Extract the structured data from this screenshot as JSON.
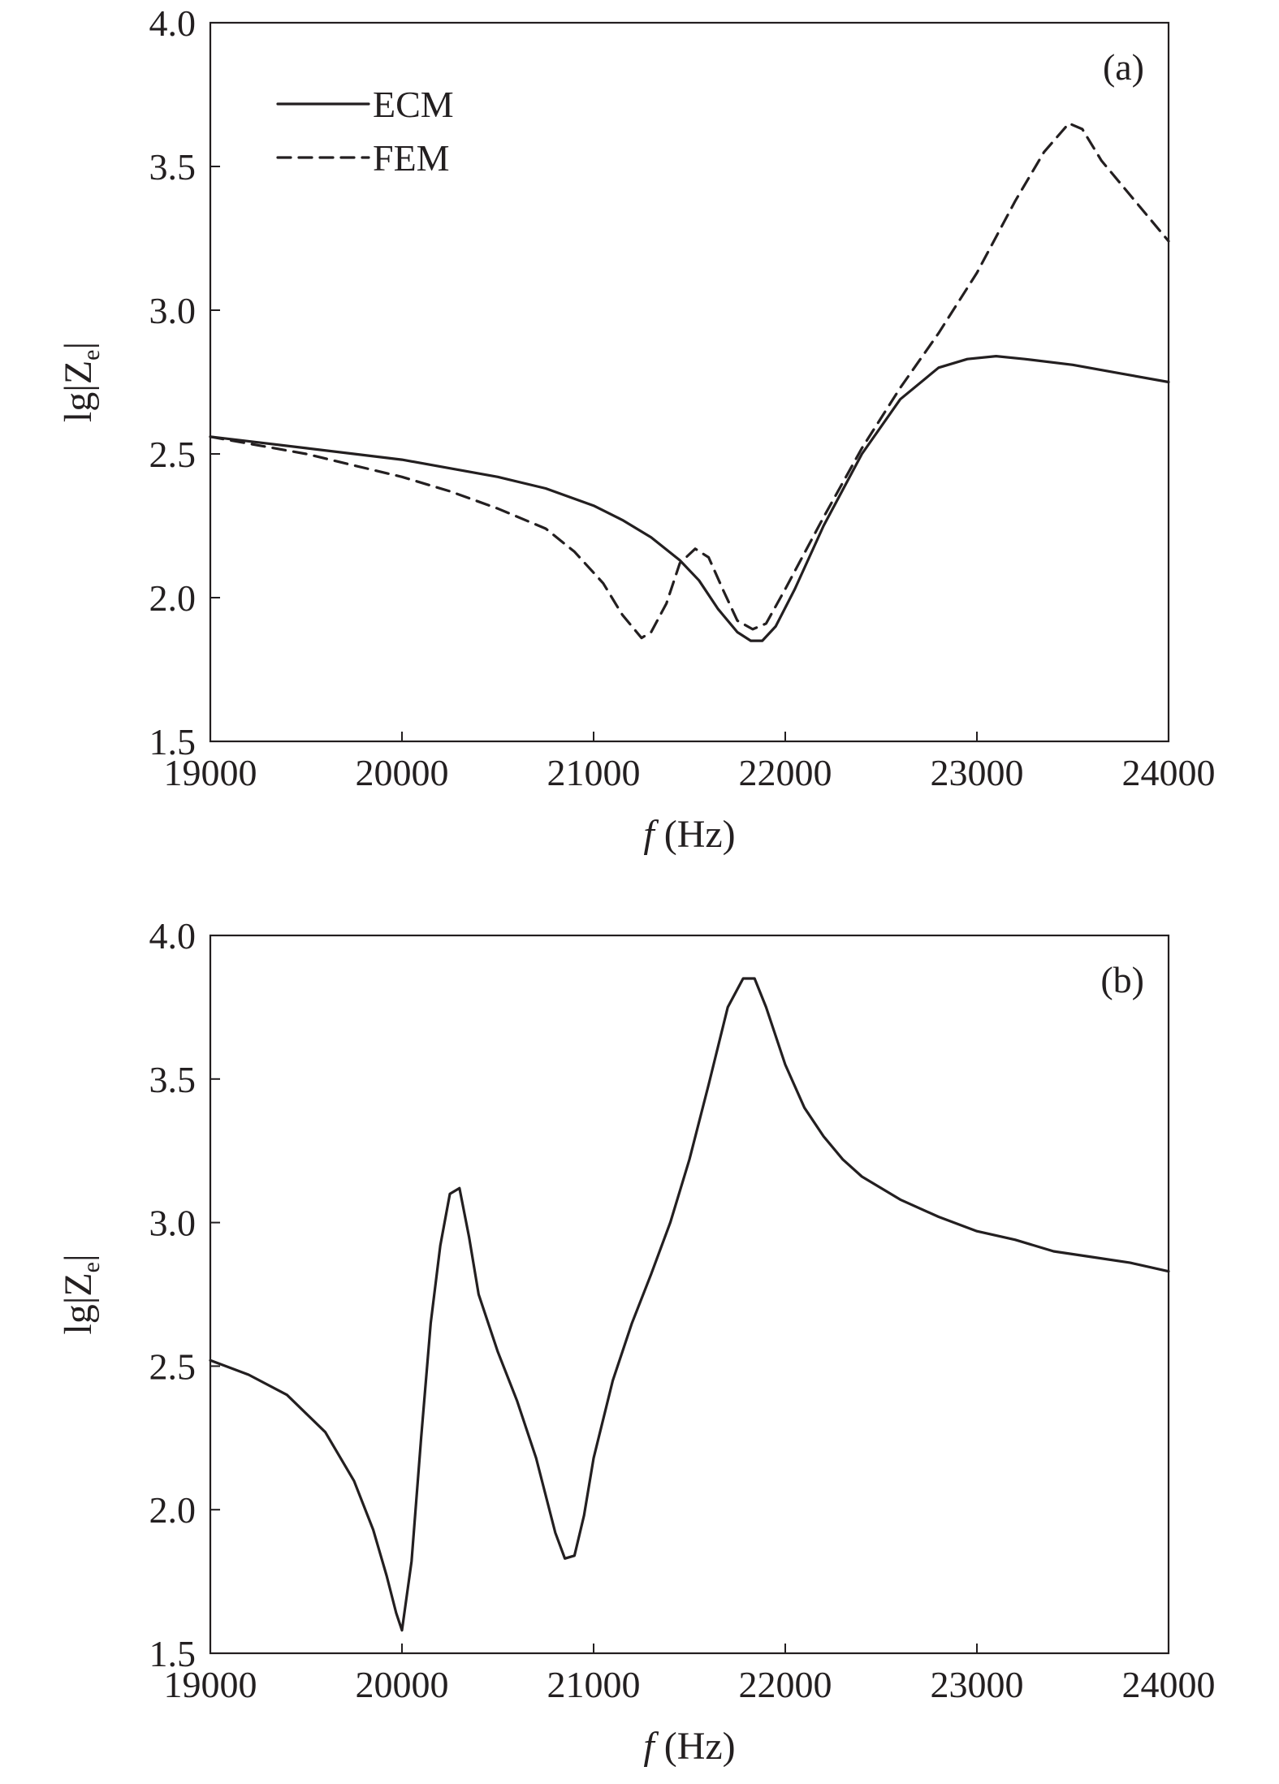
{
  "chart_data": [
    {
      "type": "line",
      "panel_label": "(a)",
      "xlabel_italic": "f",
      "xlabel_rest": " (Hz)",
      "ylabel_prefix": "lg|Z",
      "ylabel_sub": "e",
      "ylabel_suffix": "|",
      "xlim": [
        19000,
        24000
      ],
      "ylim": [
        1.5,
        4.0
      ],
      "xticks": [
        "19000",
        "20000",
        "21000",
        "22000",
        "23000",
        "24000"
      ],
      "yticks": [
        "1.5",
        "2.0",
        "2.5",
        "3.0",
        "3.5",
        "4.0"
      ],
      "legend_position": "top-left",
      "series": [
        {
          "name": "ECM",
          "style": "solid",
          "x": [
            19000,
            19250,
            19500,
            19750,
            20000,
            20250,
            20500,
            20750,
            21000,
            21150,
            21300,
            21450,
            21550,
            21650,
            21750,
            21820,
            21880,
            21950,
            22050,
            22200,
            22400,
            22600,
            22800,
            22950,
            23100,
            23250,
            23500,
            23750,
            24000
          ],
          "y": [
            2.56,
            2.54,
            2.52,
            2.5,
            2.48,
            2.45,
            2.42,
            2.38,
            2.32,
            2.27,
            2.21,
            2.13,
            2.06,
            1.96,
            1.88,
            1.85,
            1.85,
            1.9,
            2.03,
            2.25,
            2.5,
            2.69,
            2.8,
            2.83,
            2.84,
            2.83,
            2.81,
            2.78,
            2.75
          ]
        },
        {
          "name": "FEM",
          "style": "dashed",
          "x": [
            19000,
            19250,
            19500,
            19750,
            20000,
            20250,
            20500,
            20750,
            20900,
            21050,
            21150,
            21250,
            21300,
            21380,
            21450,
            21530,
            21600,
            21680,
            21750,
            21830,
            21900,
            22000,
            22200,
            22400,
            22600,
            22800,
            23000,
            23200,
            23350,
            23480,
            23550,
            23650,
            23800,
            24000
          ],
          "y": [
            2.56,
            2.53,
            2.5,
            2.46,
            2.42,
            2.37,
            2.31,
            2.24,
            2.16,
            2.05,
            1.94,
            1.86,
            1.88,
            1.98,
            2.12,
            2.17,
            2.14,
            2.02,
            1.92,
            1.89,
            1.91,
            2.03,
            2.28,
            2.52,
            2.73,
            2.92,
            3.13,
            3.38,
            3.55,
            3.65,
            3.63,
            3.52,
            3.4,
            3.24
          ]
        }
      ]
    },
    {
      "type": "line",
      "panel_label": "(b)",
      "xlabel_italic": "f",
      "xlabel_rest": " (Hz)",
      "ylabel_prefix": "lg|Z",
      "ylabel_sub": "e",
      "ylabel_suffix": "|",
      "xlim": [
        19000,
        24000
      ],
      "ylim": [
        1.5,
        4.0
      ],
      "xticks": [
        "19000",
        "20000",
        "21000",
        "22000",
        "23000",
        "24000"
      ],
      "yticks": [
        "1.5",
        "2.0",
        "2.5",
        "3.0",
        "3.5",
        "4.0"
      ],
      "series": [
        {
          "style": "solid",
          "x": [
            19000,
            19200,
            19400,
            19600,
            19750,
            19850,
            19920,
            19970,
            20000,
            20050,
            20100,
            20150,
            20200,
            20250,
            20300,
            20350,
            20400,
            20500,
            20600,
            20700,
            20800,
            20850,
            20900,
            20950,
            21000,
            21100,
            21200,
            21300,
            21400,
            21500,
            21600,
            21700,
            21780,
            21840,
            21900,
            22000,
            22100,
            22200,
            22300,
            22400,
            22600,
            22800,
            23000,
            23200,
            23400,
            23600,
            23800,
            24000
          ],
          "y": [
            2.52,
            2.47,
            2.4,
            2.27,
            2.1,
            1.93,
            1.77,
            1.64,
            1.58,
            1.82,
            2.25,
            2.65,
            2.92,
            3.1,
            3.12,
            2.95,
            2.75,
            2.55,
            2.38,
            2.18,
            1.92,
            1.83,
            1.84,
            1.98,
            2.18,
            2.45,
            2.65,
            2.82,
            3.0,
            3.22,
            3.48,
            3.75,
            3.85,
            3.85,
            3.75,
            3.55,
            3.4,
            3.3,
            3.22,
            3.16,
            3.08,
            3.02,
            2.97,
            2.94,
            2.9,
            2.88,
            2.86,
            2.83
          ]
        }
      ]
    }
  ]
}
